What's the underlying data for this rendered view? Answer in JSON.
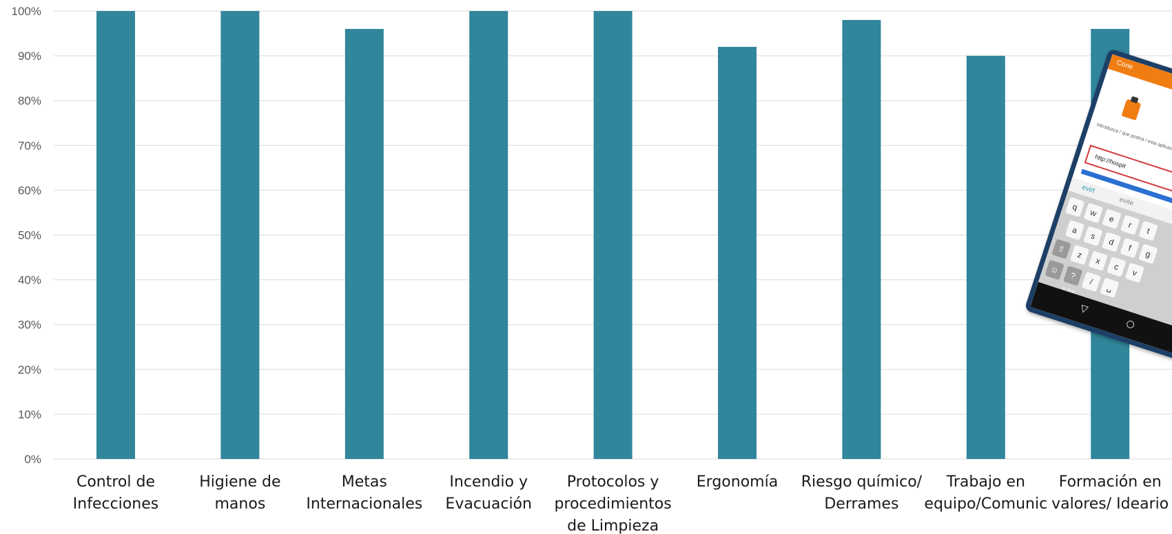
{
  "chart_data": {
    "type": "bar",
    "title": "",
    "xlabel": "",
    "ylabel": "",
    "ylim": [
      0,
      100
    ],
    "y_ticks": [
      "0%",
      "10%",
      "20%",
      "30%",
      "40%",
      "50%",
      "60%",
      "70%",
      "80%",
      "90%",
      "100%"
    ],
    "grid": true,
    "legend": "none",
    "bar_color": "#31869b",
    "categories": [
      "Control de Infecciones",
      "Higiene de manos",
      "Metas Internacionales",
      "Incendio y Evacuación",
      "Protocolos y procedimientos de Limpieza",
      "Ergonomía",
      "Riesgo químico/ Derrames",
      "Trabajo en equipo/Comunic",
      "Formación en valores/ Ideario"
    ],
    "category_label_lines": [
      [
        "Control de",
        "Infecciones"
      ],
      [
        "Higiene de",
        "manos"
      ],
      [
        "Metas",
        "Internacionales"
      ],
      [
        "Incendio y",
        "Evacuación"
      ],
      [
        "Protocolos y",
        "procedimientos",
        "de Limpieza"
      ],
      [
        "Ergonomía"
      ],
      [
        "Riesgo químico/",
        "Derrames"
      ],
      [
        "Trabajo en",
        "equipo/Comunic"
      ],
      [
        "Formación en",
        "valores/ Ideario"
      ]
    ],
    "values": [
      100,
      100,
      96,
      100,
      100,
      92,
      98,
      90,
      96
    ]
  },
  "phone_overlay": {
    "header_text": "Cone",
    "intro_text": "Introduzca / que podría / esta aplicació",
    "url_text": "http://hospit",
    "suggestions": [
      "evirt",
      "evite"
    ],
    "keyboard_rows": [
      [
        "q",
        "w",
        "e",
        "r",
        "t"
      ],
      [
        "a",
        "s",
        "d",
        "f",
        "g"
      ],
      [
        "⇧",
        "z",
        "x",
        "c",
        "v"
      ],
      [
        "☺",
        "?123",
        "/",
        "␣"
      ]
    ],
    "nav_buttons": [
      "▽",
      "○"
    ],
    "colors": {
      "frame": "#1d3f66",
      "header": "#f07d12",
      "url_border": "#d33a3a",
      "accent_bar": "#2a6fd1"
    }
  }
}
